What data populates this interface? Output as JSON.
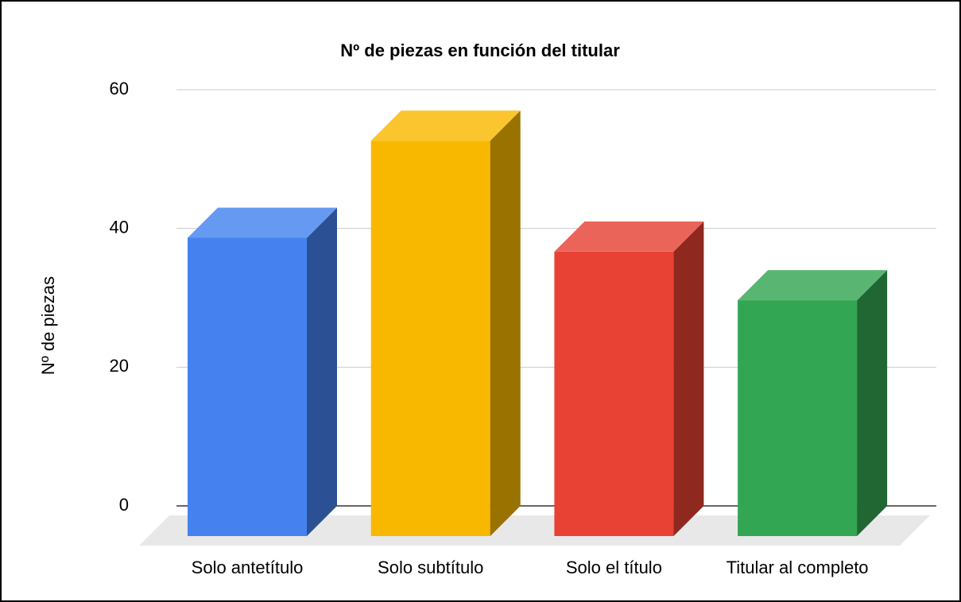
{
  "chart_data": {
    "type": "bar3d",
    "title": "Nº de piezas en función del titular",
    "y_label": "Nº de piezas",
    "categories": [
      "Solo antetítulo",
      "Solo subtítulo",
      "Solo el título",
      "Titular al completo"
    ],
    "values": [
      43,
      57,
      41,
      34
    ],
    "colors": [
      "#4582ef",
      "#f9b800",
      "#e74234",
      "#33a653"
    ],
    "ylim": [
      0,
      60
    ],
    "yticks": [
      0,
      20,
      40,
      60
    ],
    "grid": true
  }
}
